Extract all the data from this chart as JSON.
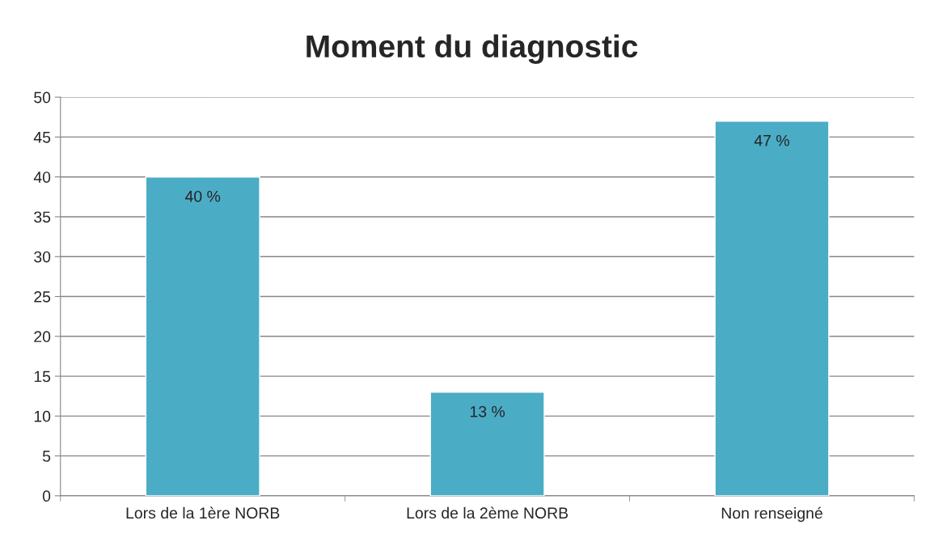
{
  "chart_data": {
    "type": "bar",
    "title": "Moment du diagnostic",
    "categories": [
      "Lors de la 1ère NORB",
      "Lors de la 2ème NORB",
      "Non renseigné"
    ],
    "values": [
      40,
      13,
      47
    ],
    "value_labels": [
      "40 %",
      "13 %",
      "47 %"
    ],
    "color": "#4bacc6",
    "ylim": [
      0,
      50
    ],
    "yticks": [
      0,
      5,
      10,
      15,
      20,
      25,
      30,
      35,
      40,
      45,
      50
    ],
    "grid": "y",
    "legend": false
  }
}
